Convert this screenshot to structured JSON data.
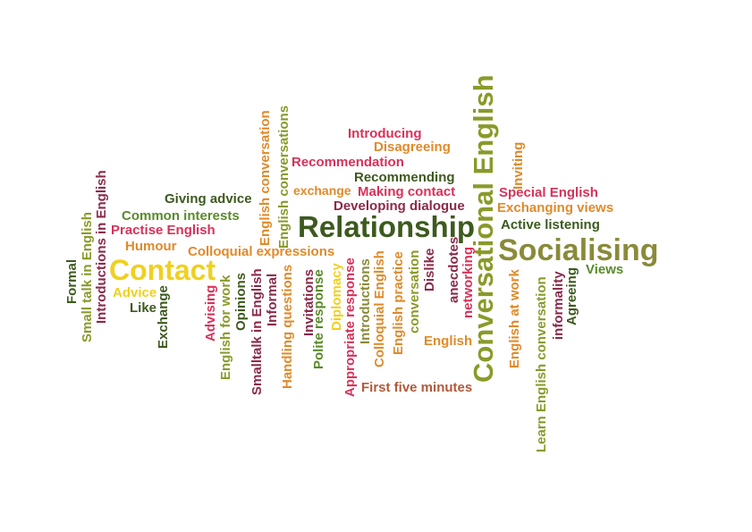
{
  "palette": {
    "olive": "#8a9a2a",
    "green": "#5a8a2a",
    "dark-green": "#3d5a1e",
    "maroon": "#8a2a4a",
    "crimson": "#d8325a",
    "magenta": "#c0306a",
    "orange": "#e08a2a",
    "yellow": "#f0d020",
    "brown-red": "#b05a3a",
    "khaki": "#8a8a3a"
  },
  "words": [
    {
      "text": "Conversational English",
      "color": "olive"
    },
    {
      "text": "Relationship",
      "color": "dark-green"
    },
    {
      "text": "Socialising",
      "color": "khaki"
    },
    {
      "text": "Contact",
      "color": "yellow"
    },
    {
      "text": "Introducing",
      "color": "crimson"
    },
    {
      "text": "Disagreeing",
      "color": "orange"
    },
    {
      "text": "Recommendation",
      "color": "crimson"
    },
    {
      "text": "Recommending",
      "color": "dark-green"
    },
    {
      "text": "exchange",
      "color": "orange"
    },
    {
      "text": "Making contact",
      "color": "crimson"
    },
    {
      "text": "Developing dialogue",
      "color": "maroon"
    },
    {
      "text": "Special English",
      "color": "crimson"
    },
    {
      "text": "Exchanging views",
      "color": "orange"
    },
    {
      "text": "Active listening",
      "color": "dark-green"
    },
    {
      "text": "Views",
      "color": "green"
    },
    {
      "text": "Giving advice",
      "color": "dark-green"
    },
    {
      "text": "Common interests",
      "color": "green"
    },
    {
      "text": "Practise English",
      "color": "crimson"
    },
    {
      "text": "Humour",
      "color": "orange"
    },
    {
      "text": "Colloquial expressions",
      "color": "orange"
    },
    {
      "text": "Advice",
      "color": "yellow"
    },
    {
      "text": "Like",
      "color": "dark-green"
    },
    {
      "text": "English",
      "color": "orange"
    },
    {
      "text": "First five minutes",
      "color": "brown-red"
    },
    {
      "text": "Inviting",
      "color": "orange"
    },
    {
      "text": "English conversation",
      "color": "orange"
    },
    {
      "text": "English conversations",
      "color": "olive"
    },
    {
      "text": "Introductions in English",
      "color": "maroon"
    },
    {
      "text": "Small talk in English",
      "color": "olive"
    },
    {
      "text": "Formal",
      "color": "dark-green"
    },
    {
      "text": "Exchange",
      "color": "dark-green"
    },
    {
      "text": "Advising",
      "color": "crimson"
    },
    {
      "text": "English for work",
      "color": "olive"
    },
    {
      "text": "Opinions",
      "color": "dark-green"
    },
    {
      "text": "Smalltalk in English",
      "color": "maroon"
    },
    {
      "text": "Informal",
      "color": "maroon"
    },
    {
      "text": "Handling questions",
      "color": "orange"
    },
    {
      "text": "Invitations",
      "color": "maroon"
    },
    {
      "text": "Polite response",
      "color": "green"
    },
    {
      "text": "Diplomacy",
      "color": "yellow"
    },
    {
      "text": "Appropriate response",
      "color": "crimson"
    },
    {
      "text": "Introductions",
      "color": "khaki"
    },
    {
      "text": "Colloquial English",
      "color": "orange"
    },
    {
      "text": "English practice",
      "color": "orange"
    },
    {
      "text": "conversation",
      "color": "olive"
    },
    {
      "text": "Dislike",
      "color": "maroon"
    },
    {
      "text": "anecdotes",
      "color": "maroon"
    },
    {
      "text": "networking",
      "color": "crimson"
    },
    {
      "text": "English at work",
      "color": "orange"
    },
    {
      "text": "Learn English conversation",
      "color": "olive"
    },
    {
      "text": "informality",
      "color": "maroon"
    },
    {
      "text": "Agreeing",
      "color": "dark-green"
    }
  ]
}
